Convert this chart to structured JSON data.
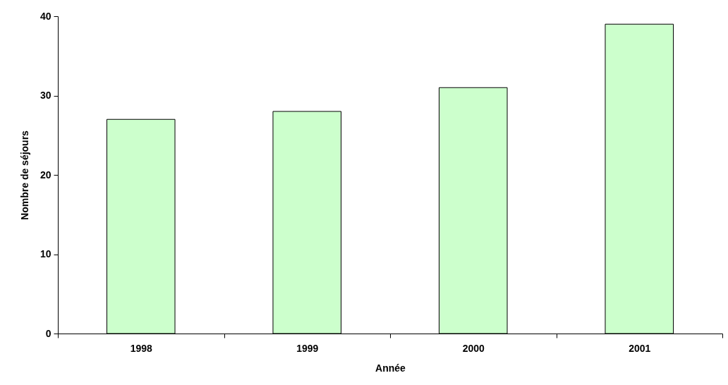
{
  "chart_data": {
    "type": "bar",
    "xlabel": "Année",
    "ylabel": "Nombre de séjours",
    "categories": [
      "1998",
      "1999",
      "2000",
      "2001"
    ],
    "values": [
      27,
      28,
      31,
      39
    ],
    "color": "#ccffcc",
    "ylim": [
      0,
      40
    ],
    "yticks": [
      0,
      10,
      20,
      30,
      40
    ],
    "grid": false
  }
}
